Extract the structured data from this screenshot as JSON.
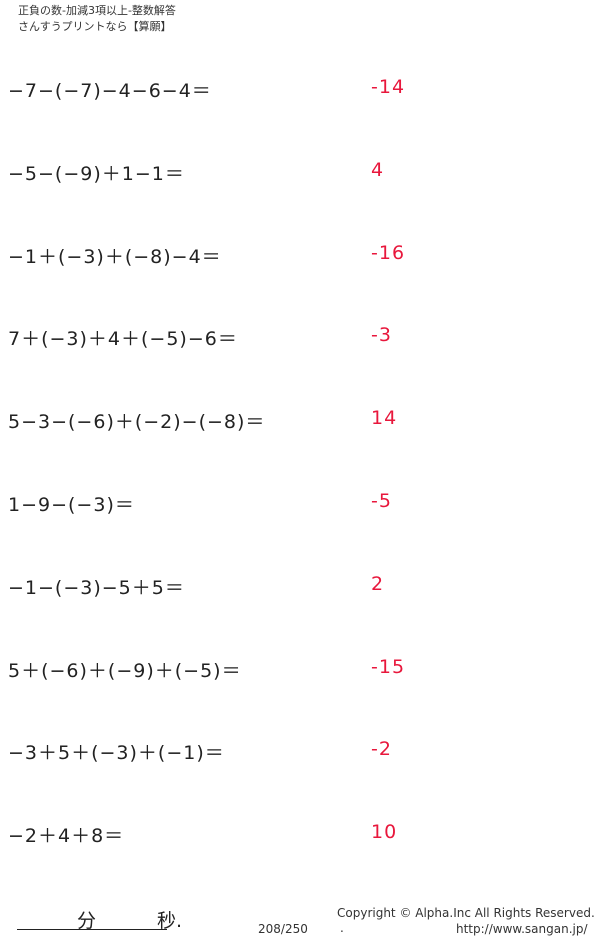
{
  "header": {
    "title": "正負の数-加減3項以上-整数解答",
    "subtitle": "さんすうプリントなら【算願】"
  },
  "problems": [
    {
      "q": "−7−(−7)−4−6−4＝",
      "a": "-14"
    },
    {
      "q": "−5−(−9)＋1−1＝",
      "a": "4"
    },
    {
      "q": "−1＋(−3)＋(−8)−4＝",
      "a": "-16"
    },
    {
      "q": "7＋(−3)＋4＋(−5)−6＝",
      "a": "-3"
    },
    {
      "q": "5−3−(−6)＋(−2)−(−8)＝",
      "a": "14"
    },
    {
      "q": "1−9−(−3)＝",
      "a": "-5"
    },
    {
      "q": "−1−(−3)−5＋5＝",
      "a": "2"
    },
    {
      "q": "5＋(−6)＋(−9)＋(−5)＝",
      "a": "-15"
    },
    {
      "q": "−3＋5＋(−3)＋(−1)＝",
      "a": "-2"
    },
    {
      "q": "−2＋4＋8＝",
      "a": "10"
    }
  ],
  "footer": {
    "minutes": "分",
    "seconds": "秒.",
    "page": "208/250",
    "copyright": "Copyright ©  Alpha.Inc All Rights Reserved.",
    "dot": ".",
    "url": "http://www.sangan.jp/"
  },
  "colors": {
    "answer": "#e8173c"
  }
}
